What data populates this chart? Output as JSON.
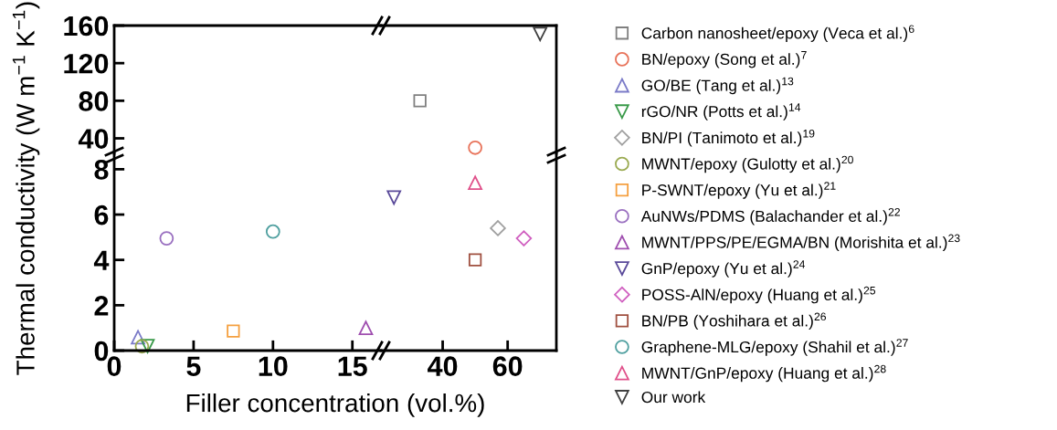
{
  "chart_data": [
    {
      "type": "scatter",
      "xlim": [
        0,
        16.8
      ],
      "ylim": [
        24,
        160
      ],
      "yticks": [
        40,
        80,
        120,
        160
      ],
      "tick_labels": "y"
    },
    {
      "type": "scatter",
      "xlim": [
        21,
        75
      ],
      "ylim": [
        24,
        160
      ],
      "tick_labels": false,
      "series": [
        {
          "color": "#808080",
          "marker": "square",
          "x": [
            33
          ],
          "values": [
            80
          ]
        },
        {
          "color": "#e8735a",
          "marker": "circle",
          "x": [
            50
          ],
          "values": [
            30
          ]
        },
        {
          "color": "#404040",
          "marker": "triangle_down",
          "x": [
            70
          ],
          "values": [
            151
          ]
        }
      ]
    },
    {
      "type": "scatter",
      "xlim": [
        0,
        16.8
      ],
      "ylim": [
        0,
        8.7
      ],
      "xticks": [
        0,
        5,
        10,
        15
      ],
      "yticks": [
        0,
        2,
        4,
        6,
        8
      ],
      "xlabel": "Filler concentration (vol.%)",
      "ylabel": "Thermal conductivity (W m$^{−1}$ K$^{−1}$)",
      "series": [
        {
          "color": "#7b7bc8",
          "marker": "triangle",
          "x": [
            1.5
          ],
          "values": [
            0.59
          ]
        },
        {
          "color": "#3a9a4a",
          "marker": "triangle_down",
          "x": [
            2.1
          ],
          "values": [
            0.2
          ]
        },
        {
          "color": "#9aaa50",
          "x": [
            1.75
          ],
          "values": [
            0.19
          ]
        },
        {
          "color": "#f5a040",
          "marker": "square",
          "x": [
            7.5
          ],
          "values": [
            0.86
          ]
        },
        {
          "color": "#9a70c0",
          "marker": "circle",
          "x": [
            3.3
          ],
          "values": [
            4.95
          ]
        },
        {
          "color": "#a050b0",
          "marker": "triangle",
          "x": [
            15.85
          ],
          "values": [
            1.0
          ]
        },
        {
          "color": "#50a0a0",
          "marker": "circle",
          "x": [
            10
          ],
          "values": [
            5.25
          ]
        }
      ]
    },
    {
      "type": "scatter",
      "xlim": [
        21,
        75
      ],
      "ylim": [
        0,
        8.7
      ],
      "xticks": [
        40,
        60
      ],
      "tick_labels": "x",
      "legend": "right",
      "series": [
        {
          "name": "Carbon nanosheet/epoxy (Veca et al.)$^{6}$",
          "color": "#808080",
          "marker": "square"
        },
        {
          "name": "BN/epoxy (Song et al.)$^{7}$",
          "color": "#e8735a",
          "marker": "circle"
        },
        {
          "name": "GO/BE (Tang et al.)$^{13}$",
          "color": "#7b7bc8",
          "marker": "triangle"
        },
        {
          "name": "rGO/NR (Potts et al.)$^{14}$",
          "color": "#3a9a4a",
          "marker": "triangle_down"
        },
        {
          "name": "BN/PI (Tanimoto et al.)$^{19}$",
          "color": "#a0a0a0",
          "marker": "diamond",
          "x": [
            57
          ],
          "values": [
            5.4
          ]
        },
        {
          "name": "MWNT/epoxy (Gulotty et al.)$^{20}$",
          "color": "#9aaa50"
        },
        {
          "name": "P-SWNT/epoxy (Yu et al.)$^{21}$",
          "color": "#f5a040",
          "marker": "square"
        },
        {
          "name": "AuNWs/PDMS (Balachander et al.)$^{22}$",
          "color": "#9a70c0",
          "marker": "circle"
        },
        {
          "name": "MWNT/PPS/PE/EGMA/BN (Morishita et al.)$^{23}$",
          "color": "#a050b0",
          "marker": "triangle"
        },
        {
          "name": "GnP/epoxy (Yu et al.)$^{24}$",
          "color": "#5a4a9a",
          "marker": "triangle_down",
          "x": [
            25
          ],
          "values": [
            6.75
          ]
        },
        {
          "name": "POSS-AlN/epoxy (Huang et al.)$^{25}$",
          "color": "#d060c0",
          "marker": "diamond",
          "x": [
            65
          ],
          "values": [
            4.95
          ]
        },
        {
          "name": "BN/PB (Yoshihara et al.)$^{26}$",
          "color": "#a05040",
          "marker": "square",
          "x": [
            50
          ],
          "values": [
            4.0
          ]
        },
        {
          "name": "Graphene-MLG/epoxy (Shahil et al.)$^{27}$",
          "color": "#50a0a0",
          "marker": "circle"
        },
        {
          "name": "MWNT/GnP/epoxy (Huang et al.)$^{28}$",
          "color": "#e0508a",
          "marker": "triangle",
          "x": [
            50
          ],
          "values": [
            7.4
          ]
        },
        {
          "name": "Our work",
          "color": "#404040",
          "marker": "triangle_down"
        }
      ]
    }
  ]
}
